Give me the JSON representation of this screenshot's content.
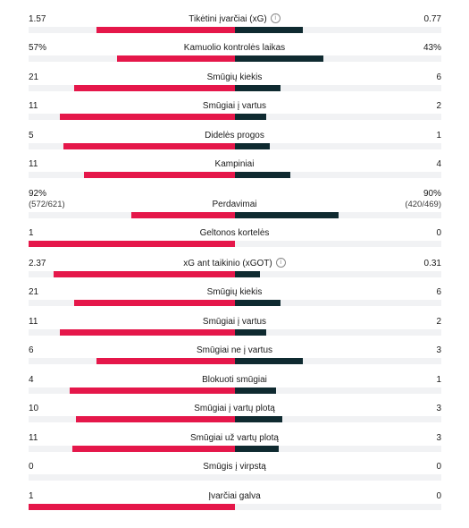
{
  "colors": {
    "home_bar": "#e5174a",
    "away_bar": "#0f2a30",
    "track": "#f1f2f4"
  },
  "stats": [
    {
      "label": "Tikėtini įvarčiai (xG)",
      "home": "1.57",
      "away": "0.77",
      "home_share": 0.67,
      "away_share": 0.33,
      "info_icon": true
    },
    {
      "label": "Kamuolio kontrolės laikas",
      "home": "57%",
      "away": "43%",
      "home_share": 0.57,
      "away_share": 0.43
    },
    {
      "label": "Smūgių kiekis",
      "home": "21",
      "away": "6",
      "home_share": 0.78,
      "away_share": 0.22
    },
    {
      "label": "Smūgiai į vartus",
      "home": "11",
      "away": "2",
      "home_share": 0.85,
      "away_share": 0.15
    },
    {
      "label": "Didelės progos",
      "home": "5",
      "away": "1",
      "home_share": 0.83,
      "away_share": 0.17
    },
    {
      "label": "Kampiniai",
      "home": "11",
      "away": "4",
      "home_share": 0.73,
      "away_share": 0.27
    },
    {
      "label": "Perdavimai",
      "home": "92%",
      "home_sub": "(572/621)",
      "away": "90%",
      "away_sub": "(420/469)",
      "home_share": 0.5,
      "away_share": 0.5
    },
    {
      "label": "Geltonos kortelės",
      "home": "1",
      "away": "0",
      "home_share": 1.0,
      "away_share": 0.0
    },
    {
      "label": "xG ant taikinio (xGOT)",
      "home": "2.37",
      "away": "0.31",
      "home_share": 0.88,
      "away_share": 0.12,
      "info_icon": true
    },
    {
      "label": "Smūgių kiekis",
      "home": "21",
      "away": "6",
      "home_share": 0.78,
      "away_share": 0.22
    },
    {
      "label": "Smūgiai į vartus",
      "home": "11",
      "away": "2",
      "home_share": 0.85,
      "away_share": 0.15
    },
    {
      "label": "Smūgiai ne į vartus",
      "home": "6",
      "away": "3",
      "home_share": 0.67,
      "away_share": 0.33
    },
    {
      "label": "Blokuoti smūgiai",
      "home": "4",
      "away": "1",
      "home_share": 0.8,
      "away_share": 0.2
    },
    {
      "label": "Smūgiai į vartų plotą",
      "home": "10",
      "away": "3",
      "home_share": 0.77,
      "away_share": 0.23
    },
    {
      "label": "Smūgiai už vartų plotą",
      "home": "11",
      "away": "3",
      "home_share": 0.79,
      "away_share": 0.21
    },
    {
      "label": "Smūgis į virpstą",
      "home": "0",
      "away": "0",
      "home_share": 0.0,
      "away_share": 0.0
    },
    {
      "label": "Įvarčiai galva",
      "home": "1",
      "away": "0",
      "home_share": 1.0,
      "away_share": 0.0
    }
  ]
}
